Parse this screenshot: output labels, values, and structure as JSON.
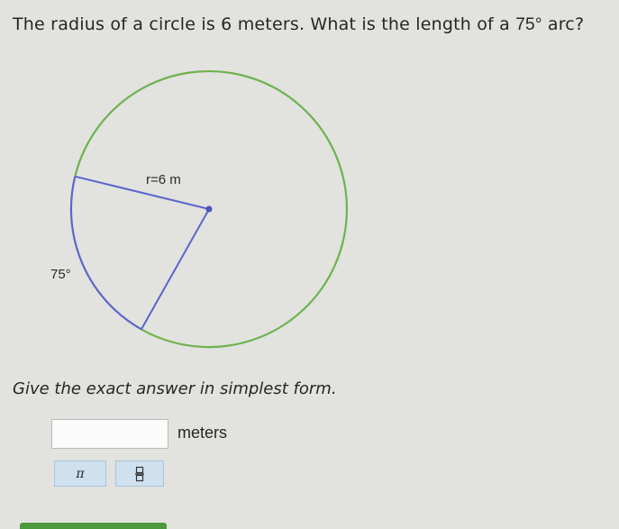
{
  "question": {
    "text": "The radius of a circle is 6 meters. What is the length of a",
    "angle": "75°",
    "end": "arc?"
  },
  "diagram": {
    "radius_label": "r=6 m",
    "angle_label": "75°"
  },
  "instruction": "Give the exact answer in simplest form.",
  "answer": {
    "unit": "meters"
  },
  "toolbar": {
    "pi_button": "π"
  }
}
